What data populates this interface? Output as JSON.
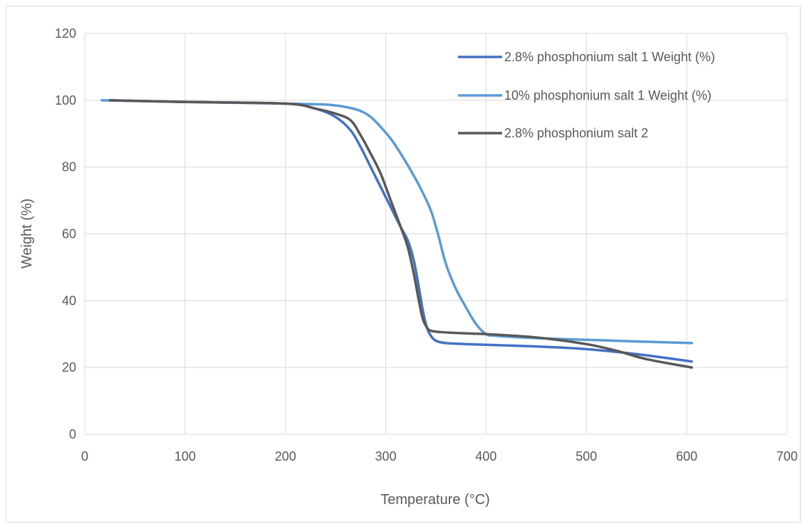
{
  "chart_data": {
    "type": "line",
    "title": "",
    "xlabel": "Temperature (°C)",
    "ylabel": "Weight (%)",
    "xlim": [
      0,
      700
    ],
    "ylim": [
      0,
      120
    ],
    "xticks": [
      0,
      100,
      200,
      300,
      400,
      500,
      600,
      700
    ],
    "yticks": [
      0,
      20,
      40,
      60,
      80,
      100,
      120
    ],
    "grid": true,
    "legend_position": "top-right",
    "series": [
      {
        "name": "2.8% phosphonium salt 1 Weight (%)",
        "color": "#4472c4",
        "x": [
          25,
          100,
          200,
          230,
          250,
          265,
          275,
          285,
          295,
          305,
          315,
          322,
          328,
          333,
          337,
          341,
          345,
          350,
          360,
          380,
          400,
          450,
          500,
          550,
          605
        ],
        "y": [
          100,
          99.5,
          99,
          97.5,
          95,
          91,
          86,
          80,
          74,
          68,
          62,
          58,
          52,
          44,
          37,
          32,
          29.5,
          28,
          27.3,
          27,
          26.8,
          26.3,
          25.5,
          24,
          21.8
        ]
      },
      {
        "name": "10% phosphonium salt 1 Weight (%)",
        "color": "#5b9bd5",
        "x": [
          17,
          100,
          200,
          240,
          260,
          275,
          285,
          295,
          305,
          315,
          325,
          335,
          345,
          352,
          360,
          370,
          380,
          390,
          400,
          410,
          450,
          500,
          550,
          605
        ],
        "y": [
          100,
          99.5,
          99,
          98.7,
          98,
          96.8,
          95,
          92,
          88.5,
          84,
          79,
          73.5,
          67,
          60,
          51,
          43.5,
          38,
          33,
          30,
          29.5,
          28.8,
          28.3,
          27.8,
          27.3
        ]
      },
      {
        "name": "2.8% phosphonium salt 2",
        "color": "#595959",
        "x": [
          25,
          100,
          200,
          230,
          250,
          265,
          275,
          285,
          295,
          305,
          315,
          322,
          328,
          333,
          337,
          341,
          345,
          355,
          380,
          400,
          450,
          500,
          530,
          560,
          605
        ],
        "y": [
          100,
          99.5,
          99,
          97.5,
          96,
          94,
          89.5,
          84,
          78,
          70,
          62,
          56,
          48,
          40,
          34.5,
          32,
          31,
          30.6,
          30.2,
          30,
          29,
          27,
          25,
          22.5,
          20
        ]
      }
    ]
  }
}
